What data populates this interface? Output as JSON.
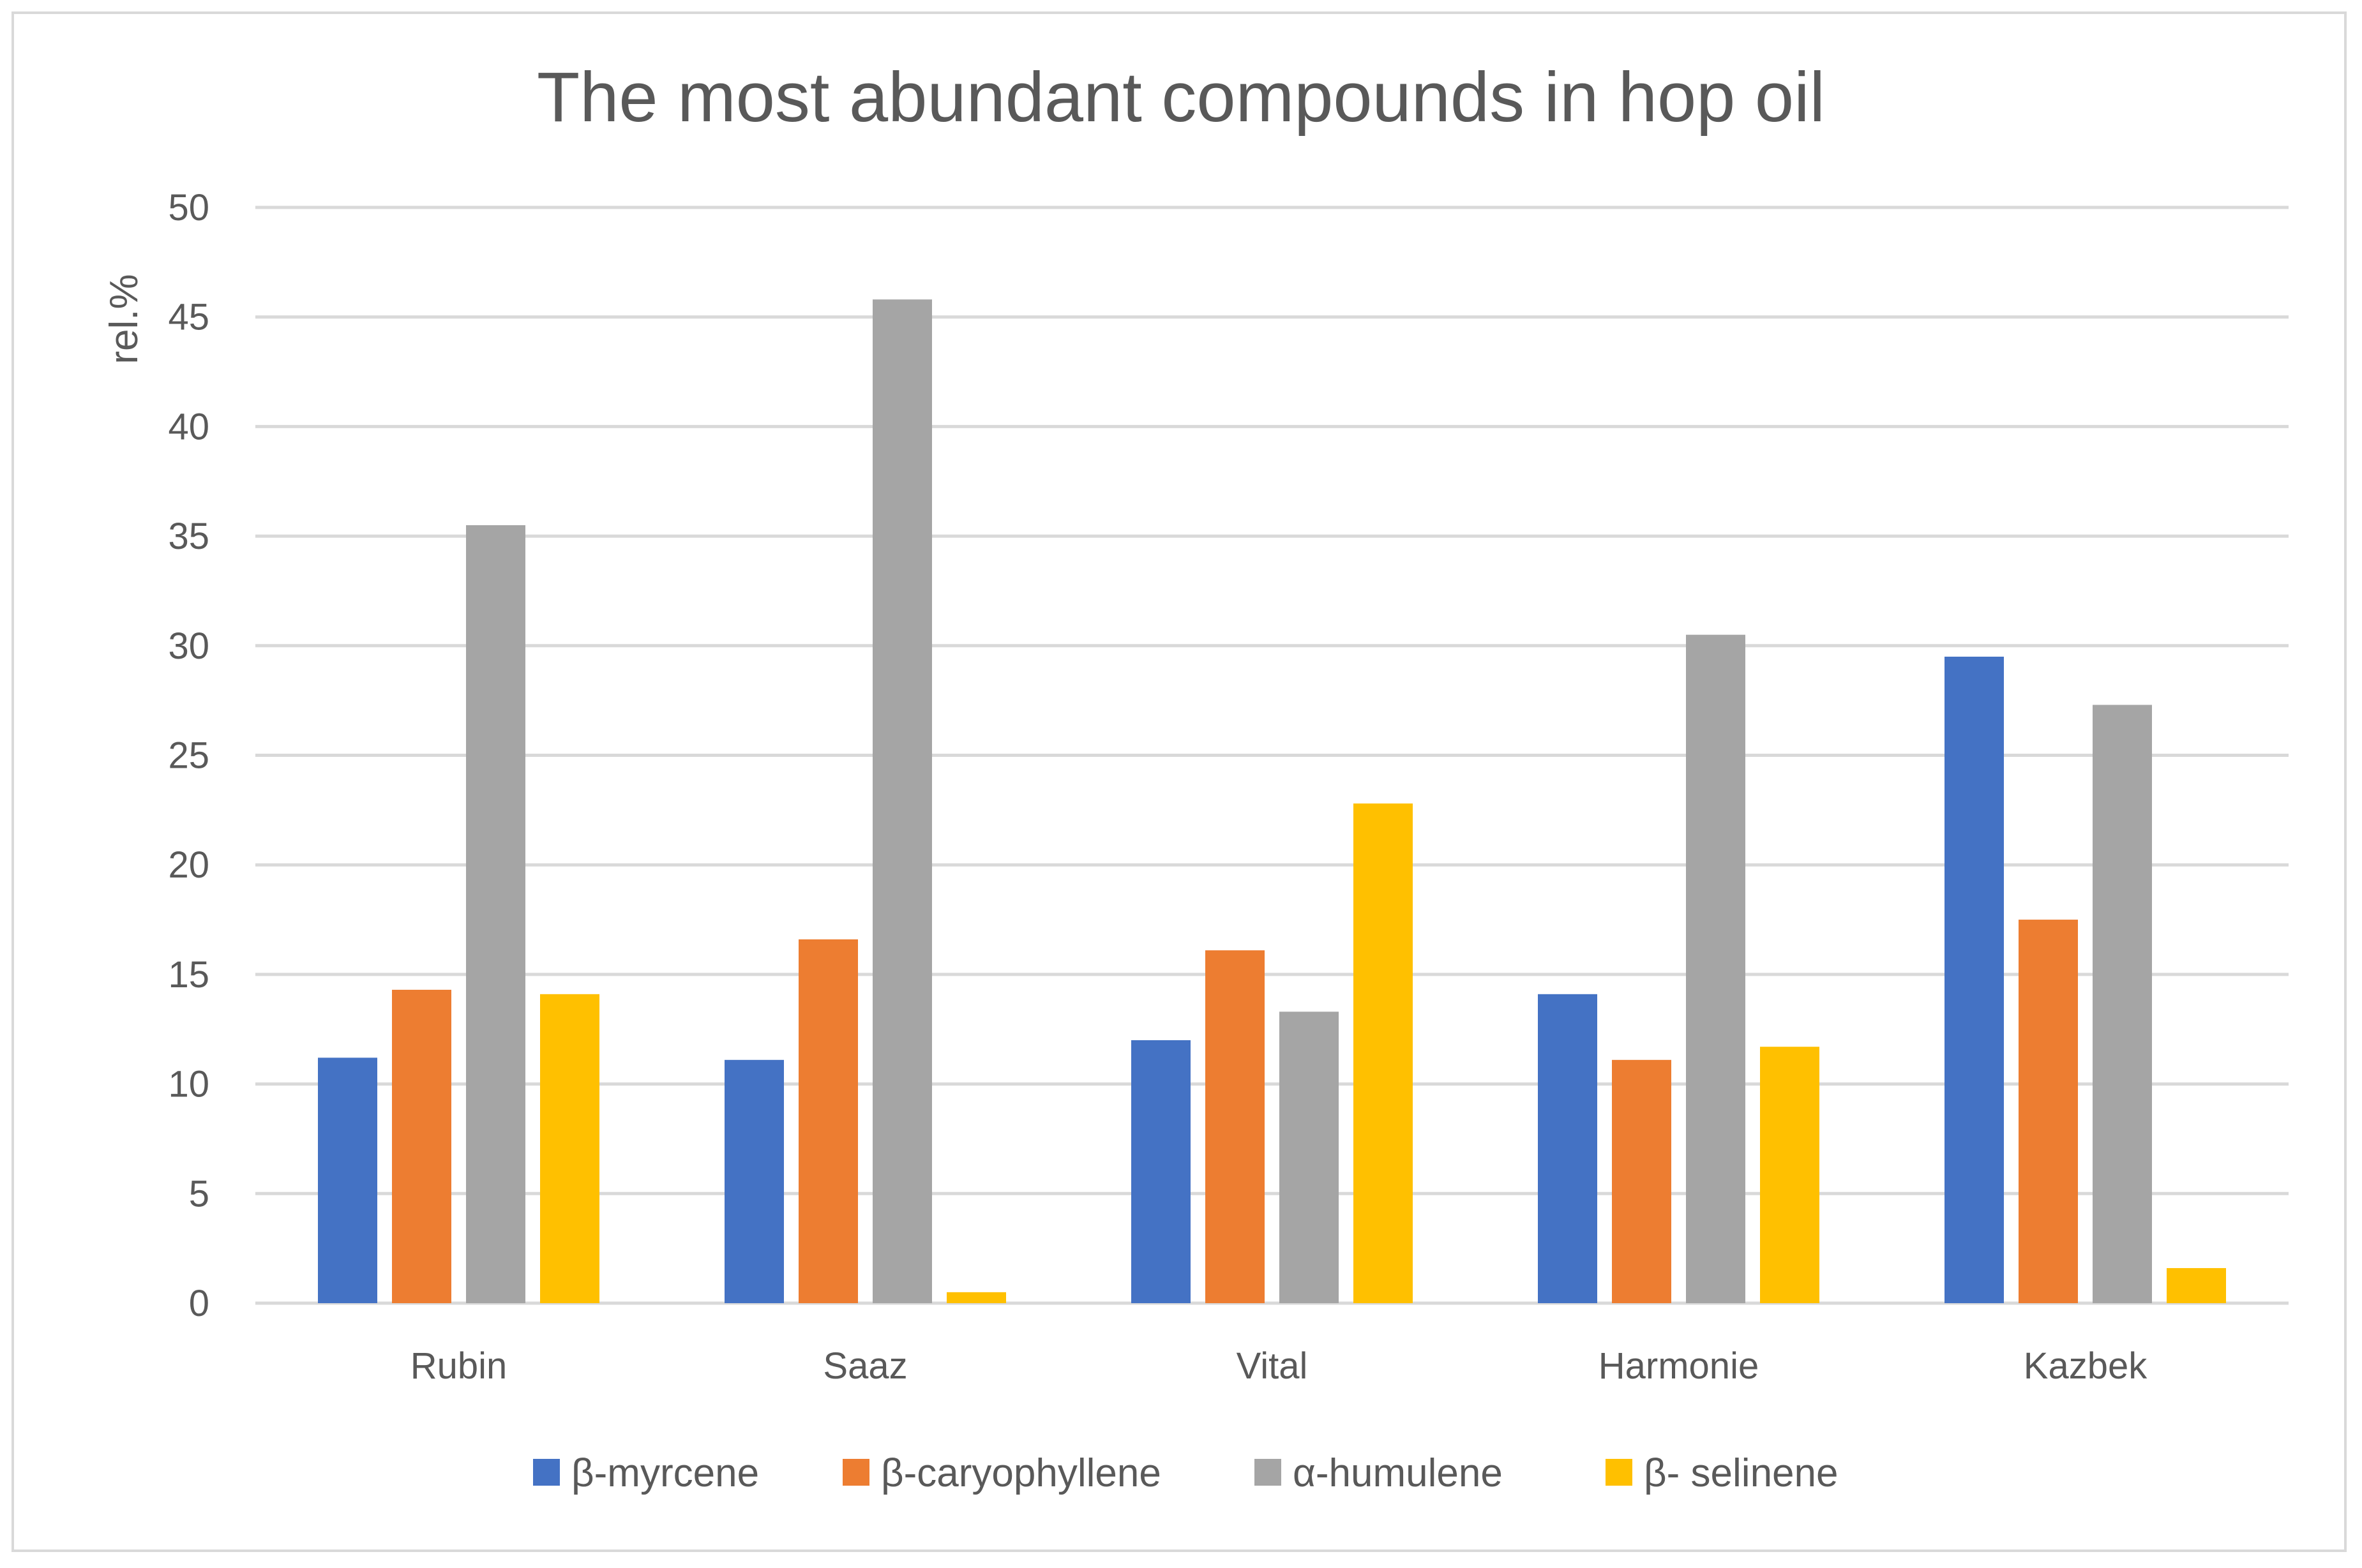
{
  "chart_data": {
    "type": "bar",
    "title": "The most abundant compounds in hop oil",
    "xlabel": "",
    "ylabel": "rel.%",
    "ylim": [
      0,
      50
    ],
    "yticks": [
      "0",
      "5",
      "10",
      "15",
      "20",
      "25",
      "30",
      "35",
      "40",
      "45",
      "50"
    ],
    "grid": true,
    "legend_position": "bottom",
    "categories": [
      "Rubin",
      "Saaz",
      "Vital",
      "Harmonie",
      "Kazbek"
    ],
    "series": [
      {
        "name": "β-myrcene",
        "color": "#4472c4",
        "values": [
          11.2,
          11.1,
          12.0,
          14.1,
          29.5
        ]
      },
      {
        "name": "β-caryophyllene",
        "color": "#ed7d31",
        "values": [
          14.3,
          16.6,
          16.1,
          11.1,
          17.5
        ]
      },
      {
        "name": "α-humulene",
        "color": "#a5a5a5",
        "values": [
          35.5,
          45.8,
          13.3,
          30.5,
          27.3
        ]
      },
      {
        "name": "β- selinene",
        "color": "#ffc000",
        "values": [
          14.1,
          0.5,
          22.8,
          11.7,
          1.6
        ]
      }
    ]
  }
}
